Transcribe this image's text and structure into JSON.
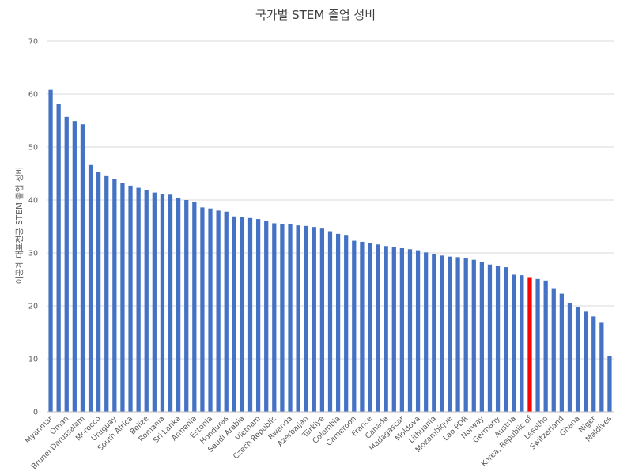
{
  "chart_data": {
    "type": "bar",
    "title": "국가별 STEM 졸업 성비",
    "xlabel": "",
    "ylabel": "이공계 대표전공 STEM 졸업 성비",
    "ylim": [
      0,
      70
    ],
    "yticks": [
      0,
      10,
      20,
      30,
      40,
      50,
      60,
      70
    ],
    "grid": true,
    "legend": "none",
    "bar_color": "#4472c4",
    "highlight_color": "#ff0000",
    "highlight_category": "Korea, Republic of",
    "categories": [
      "Myanmar",
      "",
      "Oman",
      "",
      "Brunei Darussalam",
      "",
      "Morocco",
      "",
      "Uruguay",
      "",
      "South Africa",
      "",
      "Belize",
      "",
      "Romania",
      "",
      "Sri Lanka",
      "",
      "Armenia",
      "",
      "Estonia",
      "",
      "Honduras",
      "",
      "Saudi Arabia",
      "",
      "Vietnam",
      "",
      "Czech Republic",
      "",
      "Rwanda",
      "",
      "Azerbaijan",
      "",
      "Türkiye",
      "",
      "Colombia",
      "",
      "Cameroon",
      "",
      "France",
      "",
      "Canada",
      "",
      "Madagascar",
      "",
      "Moldova",
      "",
      "Lithuania",
      "",
      "Mozambique",
      "",
      "Lao PDR",
      "",
      "Norway",
      "",
      "Germany",
      "",
      "Austria",
      "",
      "Korea, Republic of",
      "",
      "Lesotho",
      "",
      "Switzerland",
      "",
      "Ghana",
      "",
      "Niger",
      "",
      "Maldives"
    ],
    "values": [
      60.8,
      58.1,
      55.7,
      54.9,
      54.3,
      46.6,
      45.3,
      44.5,
      43.9,
      43.2,
      42.7,
      42.3,
      41.8,
      41.4,
      41.1,
      41.0,
      40.4,
      40.0,
      39.7,
      38.6,
      38.4,
      38.0,
      37.8,
      36.9,
      36.8,
      36.6,
      36.4,
      36.0,
      35.6,
      35.5,
      35.4,
      35.2,
      35.1,
      34.9,
      34.6,
      34.1,
      33.6,
      33.4,
      32.3,
      32.1,
      31.8,
      31.6,
      31.3,
      31.1,
      30.9,
      30.7,
      30.5,
      30.1,
      29.7,
      29.5,
      29.3,
      29.2,
      29.0,
      28.7,
      28.3,
      27.8,
      27.5,
      27.3,
      25.9,
      25.8,
      25.3,
      25.1,
      24.8,
      23.2,
      22.3,
      20.6,
      19.8,
      18.9,
      18.0,
      16.8,
      10.6
    ]
  }
}
